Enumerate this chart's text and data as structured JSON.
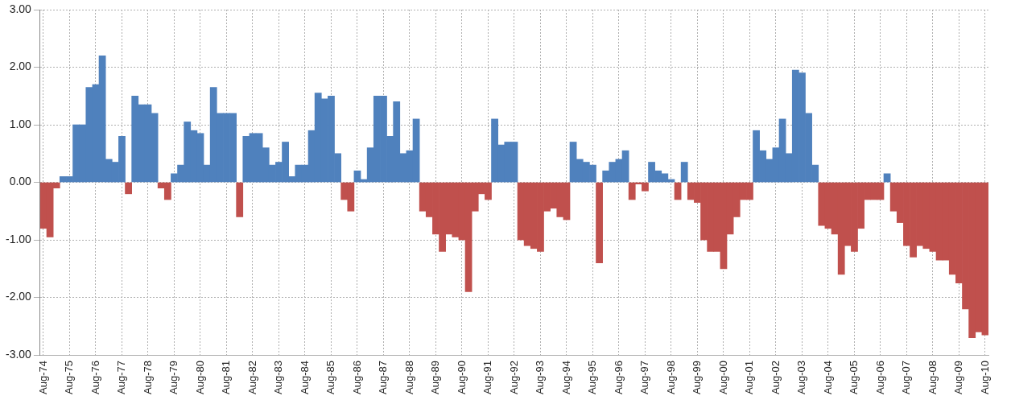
{
  "chart_data": {
    "type": "bar",
    "categories": [
      "Aug-74",
      null,
      null,
      null,
      "Aug-75",
      null,
      null,
      null,
      "Aug-76",
      null,
      null,
      null,
      "Aug-77",
      null,
      null,
      null,
      "Aug-78",
      null,
      null,
      null,
      "Aug-79",
      null,
      null,
      null,
      "Aug-80",
      null,
      null,
      null,
      "Aug-81",
      null,
      null,
      null,
      "Aug-82",
      null,
      null,
      null,
      "Aug-83",
      null,
      null,
      null,
      "Aug-84",
      null,
      null,
      null,
      "Aug-85",
      null,
      null,
      null,
      "Aug-86",
      null,
      null,
      null,
      "Aug-87",
      null,
      null,
      null,
      "Aug-88",
      null,
      null,
      null,
      "Aug-89",
      null,
      null,
      null,
      "Aug-90",
      null,
      null,
      null,
      "Aug-91",
      null,
      null,
      null,
      "Aug-92",
      null,
      null,
      null,
      "Aug-93",
      null,
      null,
      null,
      "Aug-94",
      null,
      null,
      null,
      "Aug-95",
      null,
      null,
      null,
      "Aug-96",
      null,
      null,
      null,
      "Aug-97",
      null,
      null,
      null,
      "Aug-98",
      null,
      null,
      null,
      "Aug-99",
      null,
      null,
      null,
      "Aug-00",
      null,
      null,
      null,
      "Aug-01",
      null,
      null,
      null,
      "Aug-02",
      null,
      null,
      null,
      "Aug-03",
      null,
      null,
      null,
      "Aug-04",
      null,
      null,
      null,
      "Aug-05",
      null,
      null,
      null,
      "Aug-06",
      null,
      null,
      null,
      "Aug-07",
      null,
      null,
      null,
      "Aug-08",
      null,
      null,
      null,
      "Aug-09",
      null,
      null,
      null,
      "Aug-10"
    ],
    "values": [
      -0.8,
      -0.95,
      -0.1,
      0.1,
      0.1,
      1.0,
      1.0,
      1.65,
      1.7,
      2.2,
      0.4,
      0.35,
      0.8,
      -0.2,
      1.5,
      1.35,
      1.35,
      1.2,
      -0.1,
      -0.3,
      0.15,
      0.3,
      1.05,
      0.9,
      0.85,
      0.3,
      1.65,
      1.2,
      1.2,
      1.2,
      -0.6,
      0.8,
      0.85,
      0.85,
      0.6,
      0.3,
      0.35,
      0.7,
      0.1,
      0.3,
      0.3,
      0.9,
      1.55,
      1.45,
      1.5,
      0.5,
      -0.3,
      -0.5,
      0.2,
      0.05,
      0.6,
      1.5,
      1.5,
      0.8,
      1.4,
      0.5,
      0.55,
      1.1,
      -0.5,
      -0.6,
      -0.9,
      -1.2,
      -0.9,
      -0.95,
      -1.0,
      -1.9,
      -0.5,
      -0.2,
      -0.3,
      1.1,
      0.65,
      0.7,
      0.7,
      -1.0,
      -1.1,
      -1.15,
      -1.2,
      -0.5,
      -0.45,
      -0.6,
      -0.65,
      0.7,
      0.4,
      0.35,
      0.3,
      -1.4,
      0.2,
      0.35,
      0.4,
      0.55,
      -0.3,
      -0.03,
      -0.15,
      0.35,
      0.2,
      0.15,
      0.05,
      -0.3,
      0.35,
      -0.3,
      -0.35,
      -1.0,
      -1.2,
      -1.2,
      -1.5,
      -0.9,
      -0.6,
      -0.3,
      -0.3,
      0.9,
      0.55,
      0.4,
      0.6,
      1.1,
      0.5,
      1.95,
      1.9,
      1.2,
      0.3,
      -0.75,
      -0.8,
      -0.9,
      -1.6,
      -1.1,
      -1.2,
      -0.8,
      -0.3,
      -0.3,
      -0.3,
      0.15,
      -0.5,
      -0.7,
      -1.1,
      -1.3,
      -1.1,
      -1.15,
      -1.2,
      -1.35,
      -1.35,
      -1.6,
      -1.75,
      -2.2,
      -2.7,
      -2.6,
      -2.65
    ],
    "colors": [
      "#c0504d",
      "#c0504d",
      "#c0504d",
      "#4f81bd",
      "#4f81bd",
      "#4f81bd",
      "#4f81bd",
      "#4f81bd",
      "#4f81bd",
      "#4f81bd",
      "#4f81bd",
      "#4f81bd",
      "#4f81bd",
      "#c0504d",
      "#4f81bd",
      "#4f81bd",
      "#4f81bd",
      "#4f81bd",
      "#c0504d",
      "#c0504d",
      "#4f81bd",
      "#4f81bd",
      "#4f81bd",
      "#4f81bd",
      "#4f81bd",
      "#4f81bd",
      "#4f81bd",
      "#4f81bd",
      "#4f81bd",
      "#4f81bd",
      "#c0504d",
      "#4f81bd",
      "#4f81bd",
      "#4f81bd",
      "#4f81bd",
      "#4f81bd",
      "#4f81bd",
      "#4f81bd",
      "#4f81bd",
      "#4f81bd",
      "#4f81bd",
      "#4f81bd",
      "#4f81bd",
      "#4f81bd",
      "#4f81bd",
      "#4f81bd",
      "#c0504d",
      "#c0504d",
      "#4f81bd",
      "#4f81bd",
      "#4f81bd",
      "#4f81bd",
      "#4f81bd",
      "#4f81bd",
      "#4f81bd",
      "#4f81bd",
      "#4f81bd",
      "#4f81bd",
      "#c0504d",
      "#c0504d",
      "#c0504d",
      "#c0504d",
      "#c0504d",
      "#c0504d",
      "#c0504d",
      "#c0504d",
      "#c0504d",
      "#c0504d",
      "#c0504d",
      "#4f81bd",
      "#4f81bd",
      "#4f81bd",
      "#4f81bd",
      "#c0504d",
      "#c0504d",
      "#c0504d",
      "#c0504d",
      "#c0504d",
      "#c0504d",
      "#c0504d",
      "#c0504d",
      "#4f81bd",
      "#4f81bd",
      "#4f81bd",
      "#4f81bd",
      "#c0504d",
      "#4f81bd",
      "#4f81bd",
      "#4f81bd",
      "#4f81bd",
      "#c0504d",
      "#c0504d",
      "#c0504d",
      "#4f81bd",
      "#4f81bd",
      "#4f81bd",
      "#4f81bd",
      "#c0504d",
      "#4f81bd",
      "#c0504d",
      "#c0504d",
      "#c0504d",
      "#c0504d",
      "#c0504d",
      "#c0504d",
      "#c0504d",
      "#c0504d",
      "#c0504d",
      "#c0504d",
      "#4f81bd",
      "#4f81bd",
      "#4f81bd",
      "#4f81bd",
      "#4f81bd",
      "#4f81bd",
      "#4f81bd",
      "#4f81bd",
      "#4f81bd",
      "#4f81bd",
      "#c0504d",
      "#c0504d",
      "#c0504d",
      "#c0504d",
      "#c0504d",
      "#c0504d",
      "#c0504d",
      "#c0504d",
      "#c0504d",
      "#c0504d",
      "#4f81bd",
      "#c0504d",
      "#c0504d",
      "#c0504d",
      "#c0504d",
      "#c0504d",
      "#c0504d",
      "#c0504d",
      "#c0504d",
      "#c0504d",
      "#c0504d",
      "#c0504d",
      "#c0504d",
      "#c0504d",
      "#c0504d",
      "#c0504d"
    ],
    "ylim": [
      -3,
      3
    ],
    "yticks": [
      {
        "value": -3,
        "label": "-3.00"
      },
      {
        "value": -2,
        "label": "-2.00"
      },
      {
        "value": -1,
        "label": "-1.00"
      },
      {
        "value": 0,
        "label": "0.00"
      },
      {
        "value": 1,
        "label": "1.00"
      },
      {
        "value": 2,
        "label": "2.00"
      },
      {
        "value": 3,
        "label": "3.00"
      }
    ],
    "grid": true,
    "legend": false
  }
}
